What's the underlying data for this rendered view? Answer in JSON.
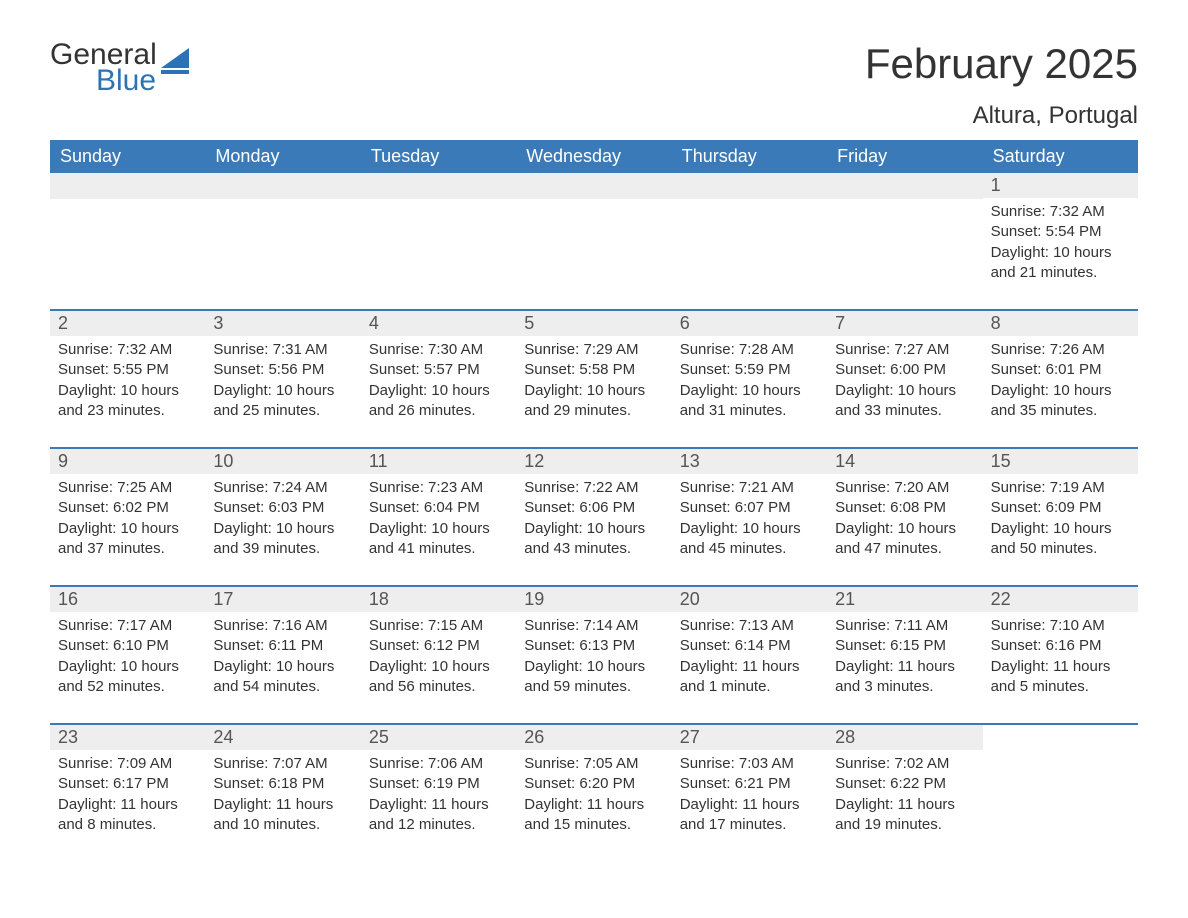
{
  "brand": {
    "word1": "General",
    "word2": "Blue",
    "logo_color": "#2b73b6",
    "text_color": "#333333"
  },
  "title": "February 2025",
  "location": "Altura, Portugal",
  "colors": {
    "header_bg": "#3a7ab8",
    "header_text": "#ffffff",
    "band_bg": "#eeeeee",
    "divider": "#3a7ab8",
    "body_text": "#333333"
  },
  "days_of_week": [
    "Sunday",
    "Monday",
    "Tuesday",
    "Wednesday",
    "Thursday",
    "Friday",
    "Saturday"
  ],
  "weeks": [
    [
      {
        "num": "",
        "lines": []
      },
      {
        "num": "",
        "lines": []
      },
      {
        "num": "",
        "lines": []
      },
      {
        "num": "",
        "lines": []
      },
      {
        "num": "",
        "lines": []
      },
      {
        "num": "",
        "lines": []
      },
      {
        "num": "1",
        "lines": [
          "Sunrise: 7:32 AM",
          "Sunset: 5:54 PM",
          "Daylight: 10 hours and 21 minutes."
        ]
      }
    ],
    [
      {
        "num": "2",
        "lines": [
          "Sunrise: 7:32 AM",
          "Sunset: 5:55 PM",
          "Daylight: 10 hours and 23 minutes."
        ]
      },
      {
        "num": "3",
        "lines": [
          "Sunrise: 7:31 AM",
          "Sunset: 5:56 PM",
          "Daylight: 10 hours and 25 minutes."
        ]
      },
      {
        "num": "4",
        "lines": [
          "Sunrise: 7:30 AM",
          "Sunset: 5:57 PM",
          "Daylight: 10 hours and 26 minutes."
        ]
      },
      {
        "num": "5",
        "lines": [
          "Sunrise: 7:29 AM",
          "Sunset: 5:58 PM",
          "Daylight: 10 hours and 29 minutes."
        ]
      },
      {
        "num": "6",
        "lines": [
          "Sunrise: 7:28 AM",
          "Sunset: 5:59 PM",
          "Daylight: 10 hours and 31 minutes."
        ]
      },
      {
        "num": "7",
        "lines": [
          "Sunrise: 7:27 AM",
          "Sunset: 6:00 PM",
          "Daylight: 10 hours and 33 minutes."
        ]
      },
      {
        "num": "8",
        "lines": [
          "Sunrise: 7:26 AM",
          "Sunset: 6:01 PM",
          "Daylight: 10 hours and 35 minutes."
        ]
      }
    ],
    [
      {
        "num": "9",
        "lines": [
          "Sunrise: 7:25 AM",
          "Sunset: 6:02 PM",
          "Daylight: 10 hours and 37 minutes."
        ]
      },
      {
        "num": "10",
        "lines": [
          "Sunrise: 7:24 AM",
          "Sunset: 6:03 PM",
          "Daylight: 10 hours and 39 minutes."
        ]
      },
      {
        "num": "11",
        "lines": [
          "Sunrise: 7:23 AM",
          "Sunset: 6:04 PM",
          "Daylight: 10 hours and 41 minutes."
        ]
      },
      {
        "num": "12",
        "lines": [
          "Sunrise: 7:22 AM",
          "Sunset: 6:06 PM",
          "Daylight: 10 hours and 43 minutes."
        ]
      },
      {
        "num": "13",
        "lines": [
          "Sunrise: 7:21 AM",
          "Sunset: 6:07 PM",
          "Daylight: 10 hours and 45 minutes."
        ]
      },
      {
        "num": "14",
        "lines": [
          "Sunrise: 7:20 AM",
          "Sunset: 6:08 PM",
          "Daylight: 10 hours and 47 minutes."
        ]
      },
      {
        "num": "15",
        "lines": [
          "Sunrise: 7:19 AM",
          "Sunset: 6:09 PM",
          "Daylight: 10 hours and 50 minutes."
        ]
      }
    ],
    [
      {
        "num": "16",
        "lines": [
          "Sunrise: 7:17 AM",
          "Sunset: 6:10 PM",
          "Daylight: 10 hours and 52 minutes."
        ]
      },
      {
        "num": "17",
        "lines": [
          "Sunrise: 7:16 AM",
          "Sunset: 6:11 PM",
          "Daylight: 10 hours and 54 minutes."
        ]
      },
      {
        "num": "18",
        "lines": [
          "Sunrise: 7:15 AM",
          "Sunset: 6:12 PM",
          "Daylight: 10 hours and 56 minutes."
        ]
      },
      {
        "num": "19",
        "lines": [
          "Sunrise: 7:14 AM",
          "Sunset: 6:13 PM",
          "Daylight: 10 hours and 59 minutes."
        ]
      },
      {
        "num": "20",
        "lines": [
          "Sunrise: 7:13 AM",
          "Sunset: 6:14 PM",
          "Daylight: 11 hours and 1 minute."
        ]
      },
      {
        "num": "21",
        "lines": [
          "Sunrise: 7:11 AM",
          "Sunset: 6:15 PM",
          "Daylight: 11 hours and 3 minutes."
        ]
      },
      {
        "num": "22",
        "lines": [
          "Sunrise: 7:10 AM",
          "Sunset: 6:16 PM",
          "Daylight: 11 hours and 5 minutes."
        ]
      }
    ],
    [
      {
        "num": "23",
        "lines": [
          "Sunrise: 7:09 AM",
          "Sunset: 6:17 PM",
          "Daylight: 11 hours and 8 minutes."
        ]
      },
      {
        "num": "24",
        "lines": [
          "Sunrise: 7:07 AM",
          "Sunset: 6:18 PM",
          "Daylight: 11 hours and 10 minutes."
        ]
      },
      {
        "num": "25",
        "lines": [
          "Sunrise: 7:06 AM",
          "Sunset: 6:19 PM",
          "Daylight: 11 hours and 12 minutes."
        ]
      },
      {
        "num": "26",
        "lines": [
          "Sunrise: 7:05 AM",
          "Sunset: 6:20 PM",
          "Daylight: 11 hours and 15 minutes."
        ]
      },
      {
        "num": "27",
        "lines": [
          "Sunrise: 7:03 AM",
          "Sunset: 6:21 PM",
          "Daylight: 11 hours and 17 minutes."
        ]
      },
      {
        "num": "28",
        "lines": [
          "Sunrise: 7:02 AM",
          "Sunset: 6:22 PM",
          "Daylight: 11 hours and 19 minutes."
        ]
      },
      {
        "num": "",
        "lines": []
      }
    ]
  ]
}
